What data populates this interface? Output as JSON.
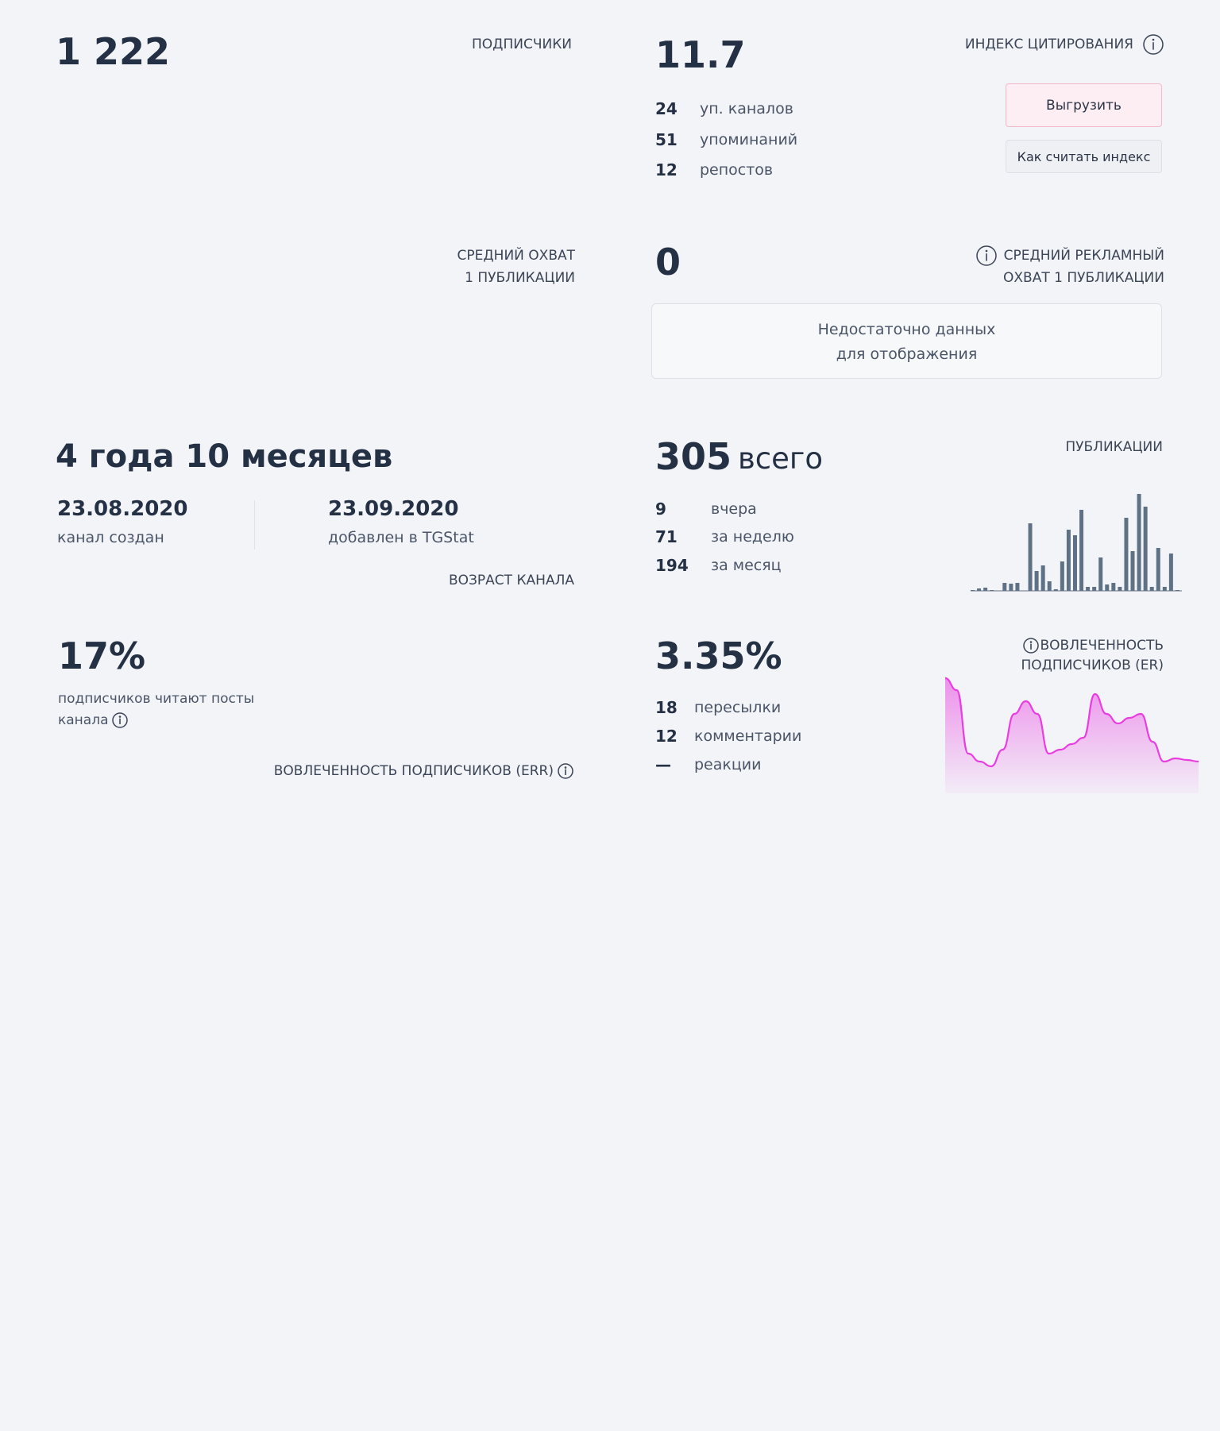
{
  "cards": {
    "subscribers": {
      "value": "1 222",
      "label": "ПОДПИСЧИКИ"
    },
    "citation": {
      "value": "11.7",
      "label": "ИНДЕКС ЦИТИРОВАНИЯ",
      "rows": [
        {
          "num": "24",
          "text": "уп. каналов"
        },
        {
          "num": "51",
          "text": "упоминаний"
        },
        {
          "num": "12",
          "text": "репостов"
        }
      ],
      "buttons": [
        "Выгрузить",
        "Как считать индекс"
      ]
    },
    "reach": {
      "label_lines": [
        "СРЕДНИЙ ОХВАТ",
        "1 ПУБЛИКАЦИИ"
      ]
    },
    "ad_reach": {
      "value": "0",
      "label_lines": [
        "СРЕДНИЙ РЕКЛАМНЫЙ",
        "ОХВАТ 1 ПУБЛИКАЦИИ"
      ],
      "notice_lines": [
        "Недостаточно данных",
        "для отображения"
      ]
    },
    "age": {
      "value": "4 года 10 месяцев",
      "created_date": "23.08.2020",
      "created_label": "канал создан",
      "added_date": "23.09.2020",
      "added_label": "добавлен в TGStat",
      "label": "ВОЗРАСТ КАНАЛА"
    },
    "posts": {
      "value": "305",
      "value_suffix": "всего",
      "label": "ПУБЛИКАЦИИ",
      "rows": [
        {
          "num": "9",
          "text": "вчера"
        },
        {
          "num": "71",
          "text": "за неделю"
        },
        {
          "num": "194",
          "text": "за месяц"
        }
      ],
      "chart": {
        "type": "bar",
        "color": "#5f7185",
        "values": [
          1,
          3,
          4,
          1,
          0,
          10,
          9,
          10,
          0,
          85,
          25,
          32,
          12,
          2,
          37,
          77,
          70,
          102,
          5,
          5,
          42,
          8,
          10,
          5,
          92,
          50,
          122,
          106,
          5,
          54,
          5,
          47,
          1
        ]
      }
    },
    "err": {
      "value": "17%",
      "desc_lines": [
        "подписчиков читают посты",
        "канала"
      ],
      "label": "ВОВЛЕЧЕННОСТЬ ПОДПИСЧИКОВ (ERR)"
    },
    "er": {
      "value": "3.35%",
      "label_lines": [
        "ВОВЛЕЧЕННОСТЬ",
        "ПОДПИСЧИКОВ (ER)"
      ],
      "rows": [
        {
          "num": "18",
          "text": "пересылки"
        },
        {
          "num": "12",
          "text": "комментарии"
        },
        {
          "num": "—",
          "text": "реакции"
        }
      ],
      "chart": {
        "type": "area",
        "color": "#e83ee0",
        "values": [
          145,
          130,
          50,
          40,
          34,
          55,
          100,
          116,
          100,
          50,
          55,
          62,
          70,
          125,
          100,
          88,
          95,
          100,
          65,
          40,
          44,
          42,
          40
        ]
      }
    }
  }
}
